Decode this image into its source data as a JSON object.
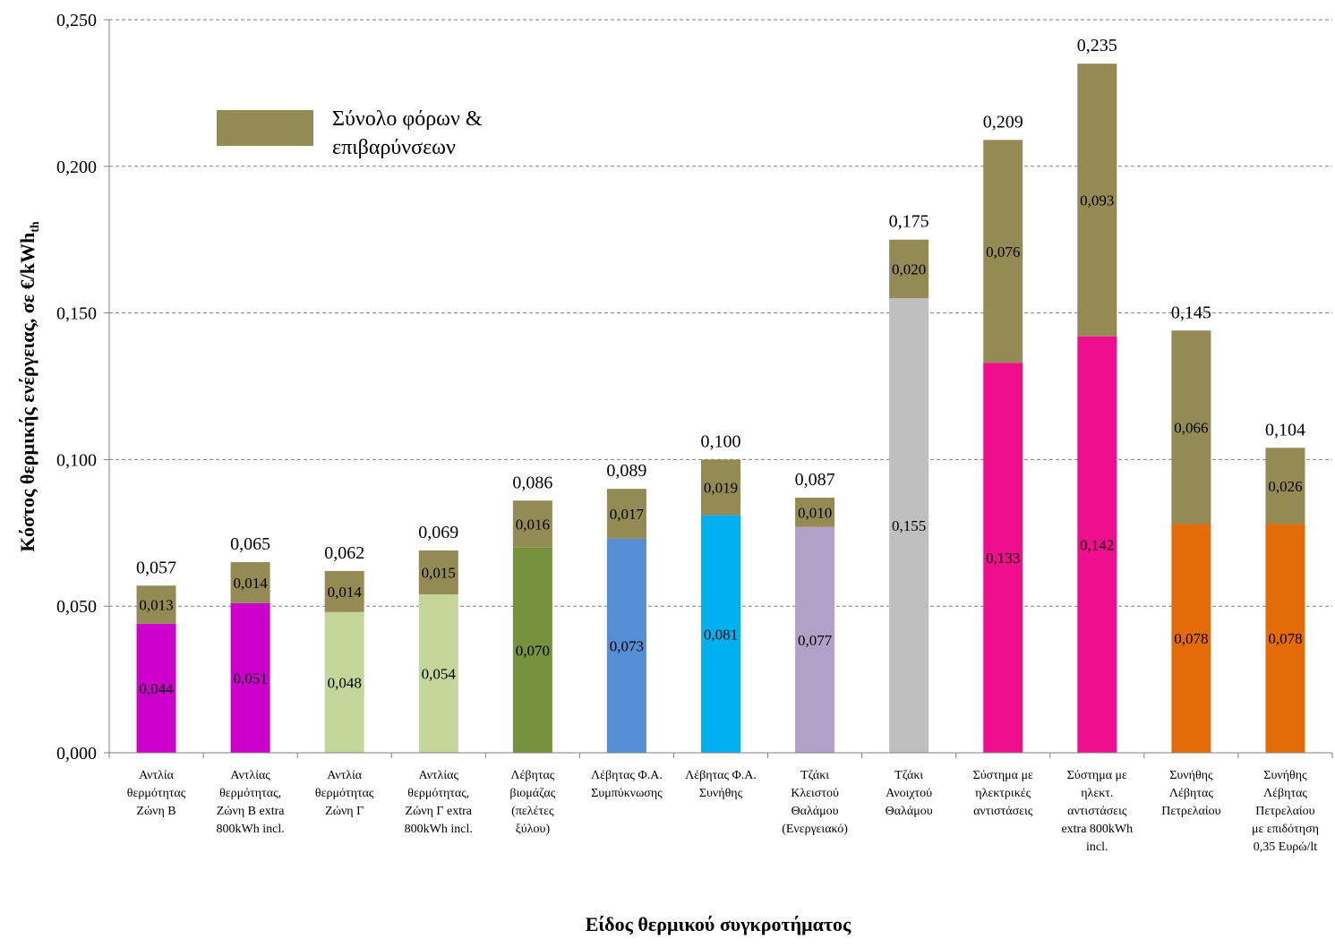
{
  "chart_data": {
    "type": "bar",
    "stacked": true,
    "xlabel": "Είδος θερμικού συγκροτήματος",
    "ylabel_main": "Κόστος θερμικής ενέργειας, σε  €/kWh",
    "ylabel_sub": "th",
    "ylim": [
      0,
      0.25
    ],
    "yticks": [
      "0,000",
      "0,050",
      "0,100",
      "0,150",
      "0,200",
      "0,250"
    ],
    "grid": true,
    "legend": {
      "position": "top-left",
      "label": "Σύνολο φόρων & επιβαρύνσεων",
      "label_lines": [
        "Σύνολο φόρων &",
        "επιβαρύνσεων"
      ],
      "color": "#948a54"
    },
    "categories": [
      {
        "lines": [
          "Αντλία",
          "θερμότητας",
          "Ζώνη Β"
        ]
      },
      {
        "lines": [
          "Αντλίας",
          "θερμότητας,",
          "Ζώνη Β extra",
          "800kWh incl."
        ]
      },
      {
        "lines": [
          "Αντλία",
          "θερμότητας",
          "Ζώνη Γ"
        ]
      },
      {
        "lines": [
          "Αντλίας",
          "θερμότητας,",
          "Ζώνη Γ extra",
          "800kWh incl."
        ]
      },
      {
        "lines": [
          "Λέβητας",
          "βιομάζας",
          "(πελέτες",
          "ξύλου)"
        ]
      },
      {
        "lines": [
          "Λέβητας Φ.Α.",
          "Συμπύκνωσης"
        ]
      },
      {
        "lines": [
          "Λέβητας Φ.Α.",
          "Συνήθης"
        ]
      },
      {
        "lines": [
          "Τζάκι",
          "Κλειστού",
          "Θαλάμου",
          "(Ενεργειακό)"
        ]
      },
      {
        "lines": [
          "Τζάκι",
          "Ανοιχτού",
          "Θαλάμου"
        ]
      },
      {
        "lines": [
          "Σύστημα με",
          "ηλεκτρικές",
          "αντιστάσεις"
        ]
      },
      {
        "lines": [
          "Σύστημα με",
          "ηλεκτ.",
          "αντιστάσεις",
          "extra 800kWh",
          "incl."
        ]
      },
      {
        "lines": [
          "Συνήθης",
          "Λέβητας",
          "Πετρελαίου"
        ]
      },
      {
        "lines": [
          "Συνήθης",
          "Λέβητας",
          "Πετρελαίου",
          "με επιδότηση",
          "0,35 Ευρώ/lt"
        ]
      }
    ],
    "base": {
      "values": [
        0.044,
        0.051,
        0.048,
        0.054,
        0.07,
        0.073,
        0.081,
        0.077,
        0.155,
        0.133,
        0.142,
        0.078,
        0.078
      ],
      "labels": [
        "0,044",
        "0,051",
        "0,048",
        "0,054",
        "0,070",
        "0,073",
        "0,081",
        "0,077",
        "0,155",
        "0,133",
        "0,142",
        "0,078",
        "0,078"
      ],
      "colors": [
        "#cc00cc",
        "#cc00cc",
        "#c4d79b",
        "#c4d79b",
        "#76923c",
        "#558ed5",
        "#00b0f0",
        "#b1a0c7",
        "#bfbfbf",
        "#ef0f8c",
        "#ef0f8c",
        "#e36c09",
        "#e36c09"
      ]
    },
    "taxes": {
      "name": "Σύνολο φόρων & επιβαρύνσεων",
      "color": "#948a54",
      "values": [
        0.013,
        0.014,
        0.014,
        0.015,
        0.016,
        0.017,
        0.019,
        0.01,
        0.02,
        0.076,
        0.093,
        0.066,
        0.026
      ],
      "labels": [
        "0,013",
        "0,014",
        "0,014",
        "0,015",
        "0,016",
        "0,017",
        "0,019",
        "0,010",
        "0,020",
        "0,076",
        "0,093",
        "0,066",
        "0,026"
      ]
    },
    "totals": {
      "values": [
        0.057,
        0.065,
        0.062,
        0.069,
        0.086,
        0.089,
        0.1,
        0.087,
        0.175,
        0.209,
        0.235,
        0.145,
        0.104
      ],
      "labels": [
        "0,057",
        "0,065",
        "0,062",
        "0,069",
        "0,086",
        "0,089",
        "0,100",
        "0,087",
        "0,175",
        "0,209",
        "0,235",
        "0,145",
        "0,104"
      ]
    }
  }
}
